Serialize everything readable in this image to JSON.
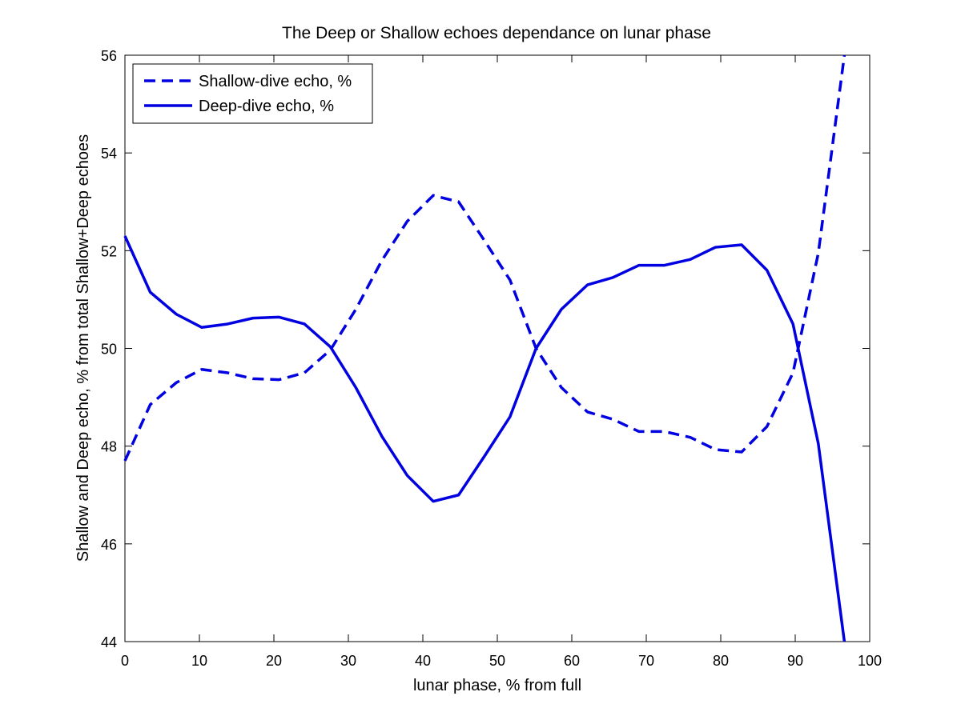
{
  "chart_data": {
    "type": "line",
    "title": "The Deep or Shallow echoes dependance on lunar phase",
    "xlabel": "lunar phase, % from full",
    "ylabel": "Shallow and Deep echo, % from total Shallow+Deep echoes",
    "xlim": [
      0,
      100
    ],
    "ylim": [
      44,
      56
    ],
    "xticks": [
      0,
      10,
      20,
      30,
      40,
      50,
      60,
      70,
      80,
      90,
      100
    ],
    "yticks": [
      44,
      46,
      48,
      50,
      52,
      54,
      56
    ],
    "grid": false,
    "legend_position": "top-left",
    "series": [
      {
        "name": "Shallow-dive echo, %",
        "style": "dashed",
        "color": "#0000e0",
        "x": [
          0,
          3.4,
          6.9,
          10.3,
          13.8,
          17.2,
          20.7,
          24.1,
          27.6,
          31.0,
          34.5,
          37.9,
          41.4,
          44.8,
          48.3,
          51.7,
          55.2,
          58.6,
          62.1,
          65.5,
          69.0,
          72.4,
          75.9,
          79.3,
          82.8,
          86.2,
          89.7,
          93.1,
          96.6
        ],
        "values": [
          47.7,
          48.85,
          49.3,
          49.57,
          49.5,
          49.38,
          49.36,
          49.5,
          49.97,
          50.8,
          51.8,
          52.6,
          53.13,
          53.0,
          52.2,
          51.4,
          50.0,
          49.2,
          48.7,
          48.55,
          48.3,
          48.3,
          48.18,
          47.93,
          47.88,
          48.4,
          49.5,
          51.95,
          56.0
        ]
      },
      {
        "name": "Deep-dive echo, %",
        "style": "solid",
        "color": "#0000e0",
        "x": [
          0,
          3.4,
          6.9,
          10.3,
          13.8,
          17.2,
          20.7,
          24.1,
          27.6,
          31.0,
          34.5,
          37.9,
          41.4,
          44.8,
          48.3,
          51.7,
          55.2,
          58.6,
          62.1,
          65.5,
          69.0,
          72.4,
          75.9,
          79.3,
          82.8,
          86.2,
          89.7,
          93.1,
          96.6
        ],
        "values": [
          52.3,
          51.15,
          50.7,
          50.43,
          50.5,
          50.62,
          50.64,
          50.5,
          50.03,
          49.2,
          48.2,
          47.4,
          46.87,
          47.0,
          47.8,
          48.6,
          50.0,
          50.8,
          51.3,
          51.45,
          51.7,
          51.7,
          51.82,
          52.07,
          52.12,
          51.6,
          50.5,
          48.05,
          44.0
        ]
      }
    ]
  }
}
